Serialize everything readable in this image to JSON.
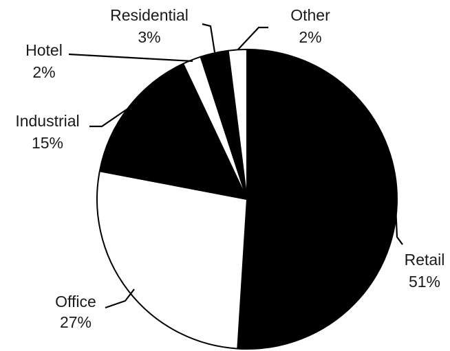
{
  "chart_data": {
    "type": "pie",
    "title": "",
    "start_angle_deg": 0,
    "direction": "clockwise",
    "categories": [
      "Retail",
      "Office",
      "Industrial",
      "Hotel",
      "Residential",
      "Other"
    ],
    "values": [
      51,
      27,
      15,
      2,
      3,
      2
    ],
    "value_labels": [
      "51%",
      "27%",
      "15%",
      "2%",
      "3%",
      "2%"
    ],
    "colors": [
      "#000000",
      "#ffffff",
      "#000000",
      "#ffffff",
      "#000000",
      "#ffffff"
    ],
    "legend": "none",
    "labels_with_leader_lines": true
  }
}
